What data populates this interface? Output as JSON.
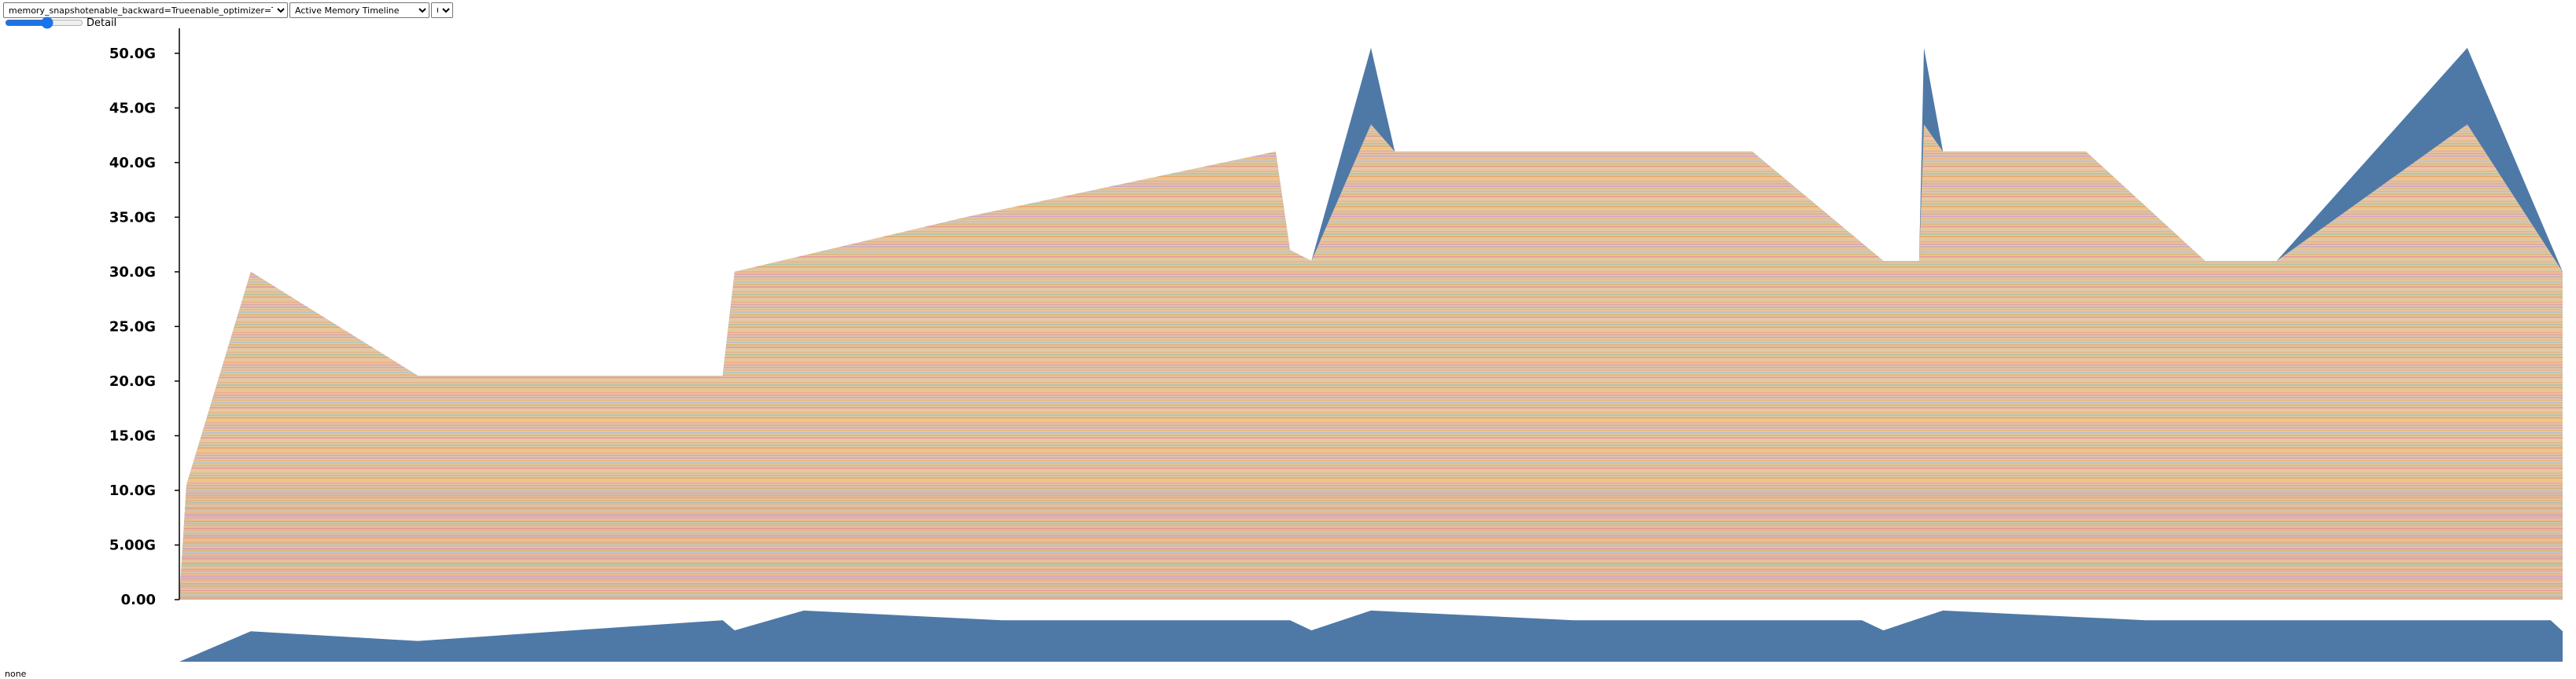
{
  "controls": {
    "snapshot_file": "memory_snapshotenable_backward=Trueenable_optimizer=True.pickle",
    "view": "Active Memory Timeline",
    "device": "0",
    "detail_label": "Detail",
    "detail_level": 0.55
  },
  "status_text": "none",
  "colors": {
    "blue": "#4e79a7",
    "tan": "#e2c9a8",
    "palette": [
      "#e7a05d",
      "#f0b46e",
      "#e8b082",
      "#d9a0a0",
      "#e89090",
      "#f2c27a",
      "#a7c1d9",
      "#9cc4a4",
      "#c8a0c8",
      "#e6c8a0",
      "#f4a582",
      "#d8b365"
    ]
  },
  "chart_data": {
    "type": "area",
    "title": "",
    "xlabel": "",
    "ylabel": "",
    "ylim": [
      0,
      52
    ],
    "y_unit": "G",
    "y_ticks": [
      "0.00",
      "5.00G",
      "10.0G",
      "15.0G",
      "20.0G",
      "25.0G",
      "30.0G",
      "35.0G",
      "40.0G",
      "45.0G",
      "50.0G"
    ],
    "y_tick_values": [
      0,
      5,
      10,
      15,
      20,
      25,
      30,
      35,
      40,
      45,
      50
    ],
    "xlim": [
      0,
      1000
    ],
    "series": [
      {
        "x": [
          0,
          3,
          30,
          100,
          228,
          233,
          330,
          460,
          466,
          475,
          500,
          510,
          615,
          660,
          715,
          730,
          732,
          740,
          780,
          800,
          850,
          880,
          960,
          1000
        ],
        "values": [
          0,
          10.5,
          30,
          20.5,
          20.5,
          30,
          35,
          41,
          32,
          31,
          50.5,
          41,
          41,
          41,
          31,
          31,
          50.5,
          41,
          41,
          41,
          31,
          31,
          50.5,
          30
        ]
      }
    ],
    "overview_peaks": [
      {
        "x": 0,
        "y": 0
      },
      {
        "x": 30,
        "y": 30
      },
      {
        "x": 100,
        "y": 20.5
      },
      {
        "x": 228,
        "y": 41
      },
      {
        "x": 233,
        "y": 31
      },
      {
        "x": 262,
        "y": 50.5
      },
      {
        "x": 345,
        "y": 41
      },
      {
        "x": 466,
        "y": 41
      },
      {
        "x": 475,
        "y": 31
      },
      {
        "x": 500,
        "y": 50.5
      },
      {
        "x": 585,
        "y": 41
      },
      {
        "x": 706,
        "y": 41
      },
      {
        "x": 715,
        "y": 31
      },
      {
        "x": 740,
        "y": 50.5
      },
      {
        "x": 825,
        "y": 41
      },
      {
        "x": 995,
        "y": 41
      },
      {
        "x": 1000,
        "y": 30
      }
    ]
  }
}
